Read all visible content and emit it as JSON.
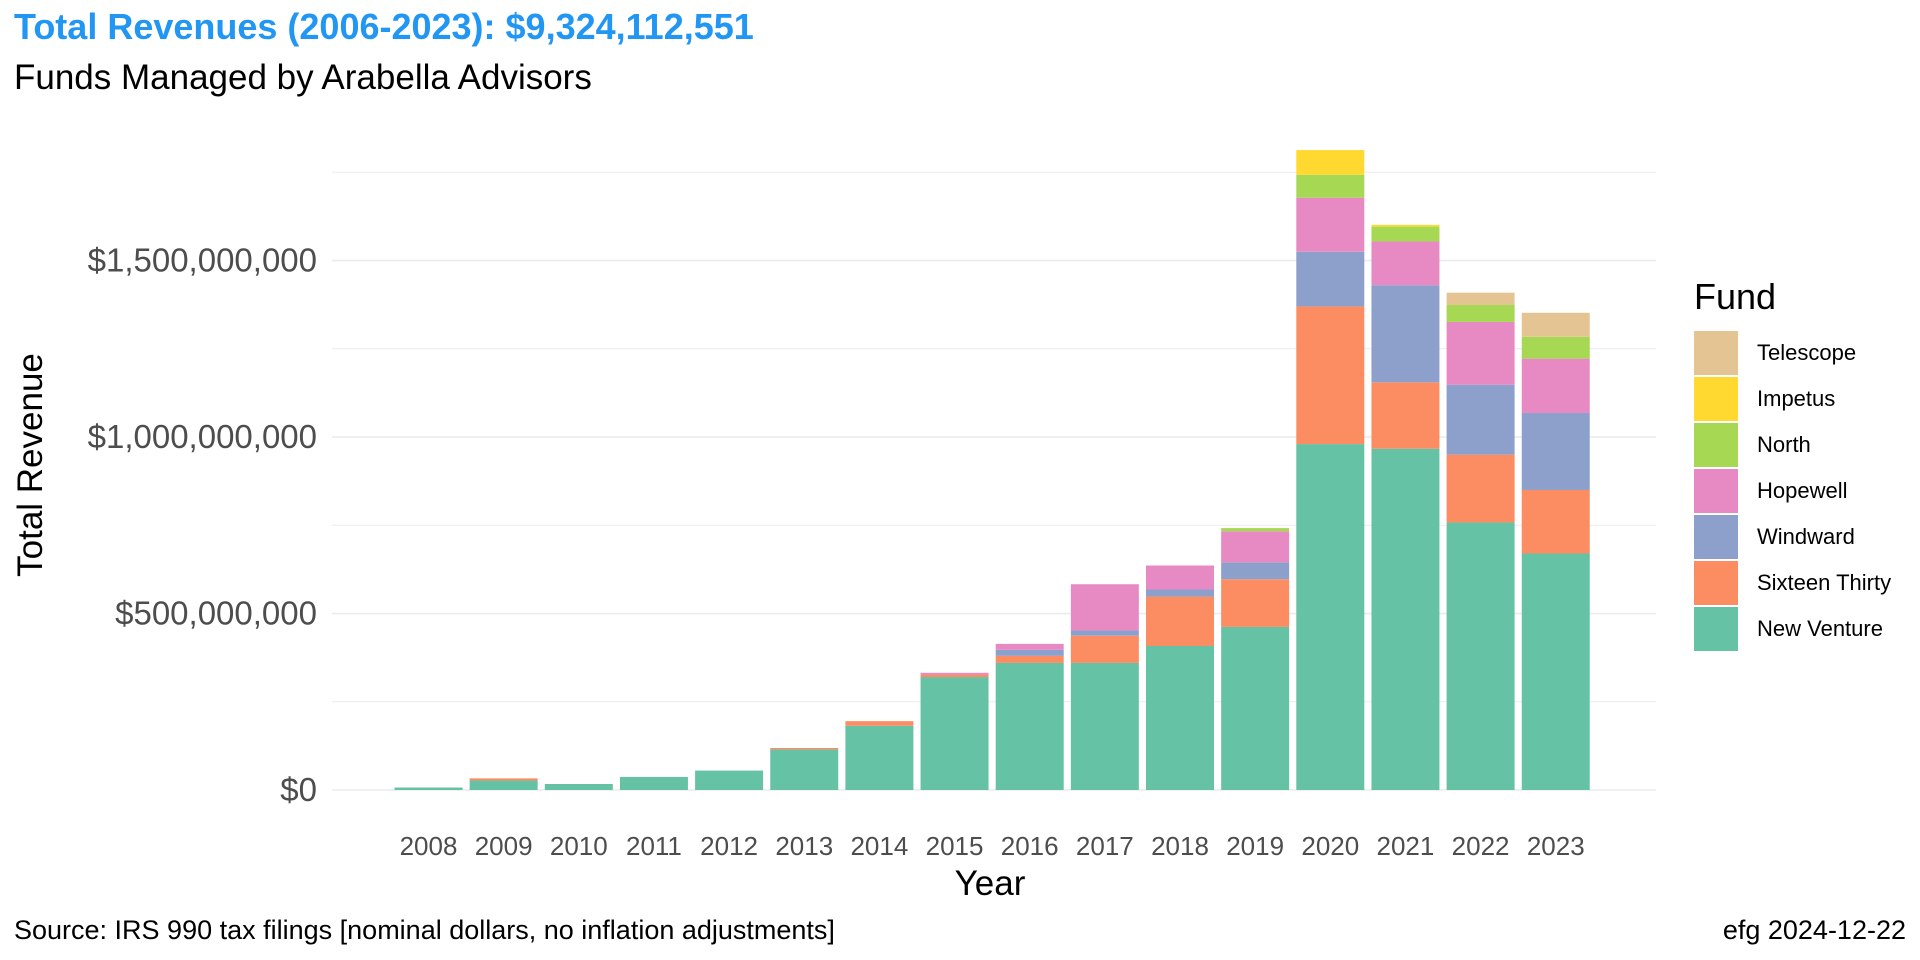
{
  "title": "Total Revenues (2006-2023): $9,324,112,551",
  "subtitle": "Funds Managed by Arabella Advisors",
  "caption_left": "Source:  IRS 990 tax filings [nominal dollars, no inflation adjustments]",
  "caption_right": "efg 2024-12-22",
  "legend_title": "Fund",
  "chart_data": {
    "type": "bar",
    "stacked": true,
    "categories": [
      "2008",
      "2009",
      "2010",
      "2011",
      "2012",
      "2013",
      "2014",
      "2015",
      "2016",
      "2017",
      "2018",
      "2019",
      "2020",
      "2021",
      "2022",
      "2023"
    ],
    "series": [
      {
        "name": "New Venture",
        "color": "#66C2A5",
        "values": [
          7000000,
          27000000,
          17000000,
          37000000,
          55000000,
          115000000,
          182000000,
          320000000,
          360000000,
          360000000,
          408000000,
          462000000,
          980000000,
          967000000,
          758000000,
          670000000
        ]
      },
      {
        "name": "Sixteen Thirty",
        "color": "#FC8D62",
        "values": [
          0,
          6000000,
          0,
          0,
          0,
          4000000,
          13000000,
          7000000,
          20000000,
          77000000,
          140000000,
          135000000,
          390000000,
          188000000,
          192000000,
          180000000
        ]
      },
      {
        "name": "Windward",
        "color": "#8DA0CB",
        "values": [
          0,
          0,
          0,
          0,
          0,
          0,
          0,
          0,
          17000000,
          15000000,
          20000000,
          48000000,
          155000000,
          275000000,
          198000000,
          218000000
        ]
      },
      {
        "name": "Hopewell",
        "color": "#E78AC3",
        "values": [
          0,
          0,
          0,
          0,
          0,
          0,
          0,
          5000000,
          17000000,
          131000000,
          68000000,
          88000000,
          153000000,
          124000000,
          178000000,
          154000000
        ]
      },
      {
        "name": "North",
        "color": "#A6D854",
        "values": [
          0,
          0,
          0,
          0,
          0,
          0,
          0,
          0,
          0,
          0,
          0,
          9000000,
          65000000,
          42000000,
          48000000,
          62000000
        ]
      },
      {
        "name": "Impetus",
        "color": "#FFD92F",
        "values": [
          0,
          0,
          0,
          0,
          0,
          0,
          0,
          0,
          0,
          0,
          0,
          0,
          70000000,
          5000000,
          0,
          0
        ]
      },
      {
        "name": "Telescope",
        "color": "#E5C494",
        "values": [
          0,
          0,
          0,
          0,
          0,
          0,
          0,
          0,
          0,
          0,
          0,
          0,
          0,
          0,
          35000000,
          68000000
        ]
      }
    ],
    "xlabel": "Year",
    "ylabel": "Total Revenue",
    "ylim": [
      0,
      1850000000
    ],
    "yticks": [
      0,
      500000000,
      1000000000,
      1500000000
    ],
    "ytick_labels": [
      "$0",
      "$500,000,000",
      "$1,000,000,000",
      "$1,500,000,000"
    ],
    "grid": true,
    "legend_position": "right"
  }
}
